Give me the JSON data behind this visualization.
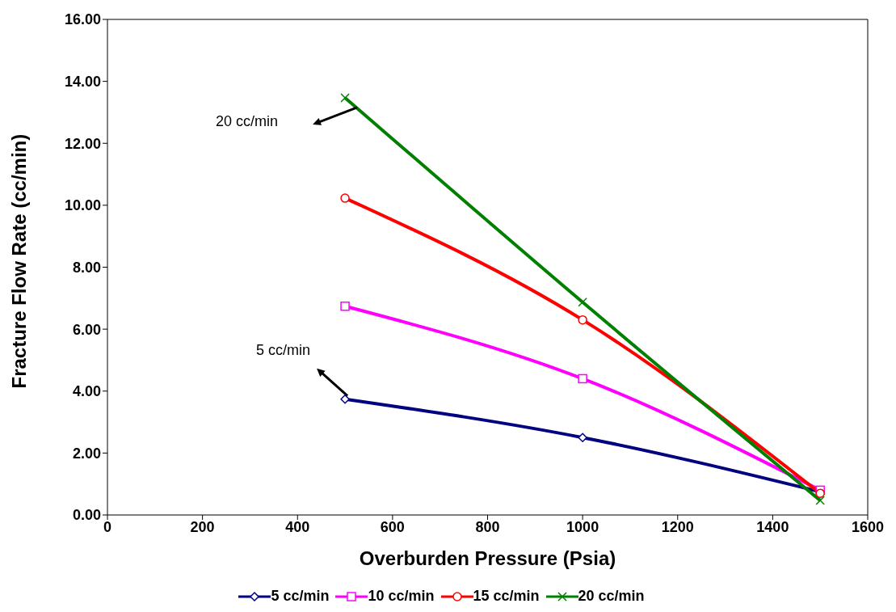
{
  "chart_data": {
    "type": "line",
    "xlabel": "Overburden Pressure (Psia)",
    "ylabel": "Fracture Flow Rate (cc/min)",
    "x": [
      500,
      1000,
      1500
    ],
    "series": [
      {
        "name": "5 cc/min",
        "color": "#000080",
        "marker": "diamond",
        "values": [
          3.74,
          2.5,
          0.75
        ]
      },
      {
        "name": "10 cc/min",
        "color": "#ff00ff",
        "marker": "square",
        "values": [
          6.74,
          4.4,
          0.8
        ]
      },
      {
        "name": "15 cc/min",
        "color": "#ff0000",
        "marker": "circle",
        "values": [
          10.23,
          6.3,
          0.7
        ]
      },
      {
        "name": "20 cc/min",
        "color": "#008000",
        "marker": "cross",
        "values": [
          13.47,
          6.87,
          0.47
        ]
      }
    ],
    "xlim": [
      0,
      1600
    ],
    "xticks": [
      0,
      200,
      400,
      600,
      800,
      1000,
      1200,
      1400,
      1600
    ],
    "ylim": [
      0,
      16
    ],
    "yticks": [
      {
        "value": 0,
        "label": "0.00"
      },
      {
        "value": 2,
        "label": "2.00"
      },
      {
        "value": 4,
        "label": "4.00"
      },
      {
        "value": 6,
        "label": "6.00"
      },
      {
        "value": 8,
        "label": "8.00"
      },
      {
        "value": 10,
        "label": "10.00"
      },
      {
        "value": 12,
        "label": "12.00"
      },
      {
        "value": 14,
        "label": "14.00"
      },
      {
        "value": 16,
        "label": "16.00"
      }
    ],
    "annotations": [
      "20 cc/min",
      "5 cc/min"
    ],
    "grid": false,
    "legend": "bottom"
  }
}
